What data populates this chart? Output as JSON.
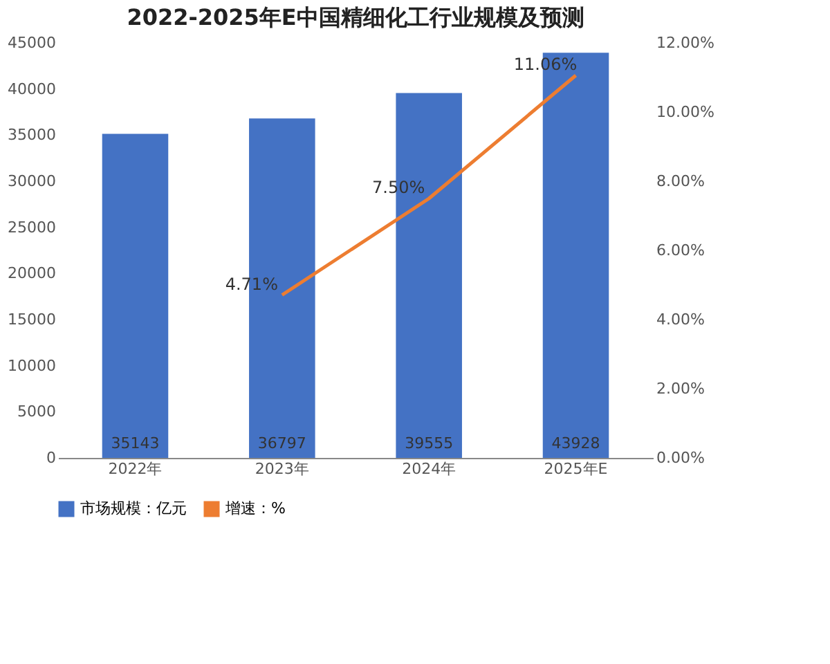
{
  "chart_data": {
    "type": "bar",
    "title": "2022-2025年E中国精细化工行业规模及预测",
    "categories": [
      "2022年",
      "2023年",
      "2024年",
      "2025年E"
    ],
    "series": [
      {
        "name": "市场规模：亿元",
        "color": "#4472c4",
        "values": [
          35143,
          36797,
          39555,
          43928
        ],
        "value_labels": [
          "35143",
          "36797",
          "39555",
          "43928"
        ]
      },
      {
        "name": "增速：%",
        "type": "line",
        "axis": "y2",
        "color": "#ed7d31",
        "values": [
          null,
          4.71,
          7.5,
          11.06
        ],
        "value_labels": [
          null,
          "4.71%",
          "7.50%",
          "11.06%"
        ]
      }
    ],
    "ylim": [
      0,
      45000
    ],
    "yticks": [
      0,
      5000,
      10000,
      15000,
      20000,
      25000,
      30000,
      35000,
      40000,
      45000
    ],
    "y2lim": [
      0,
      12
    ],
    "y2ticks": [
      {
        "value": 0,
        "label": "0.00%"
      },
      {
        "value": 2,
        "label": "2.00%"
      },
      {
        "value": 4,
        "label": "4.00%"
      },
      {
        "value": 6,
        "label": "6.00%"
      },
      {
        "value": 8,
        "label": "8.00%"
      },
      {
        "value": 10,
        "label": "10.00%"
      },
      {
        "value": 12,
        "label": "12.00%"
      }
    ],
    "grid": false,
    "legend": "bottom"
  }
}
